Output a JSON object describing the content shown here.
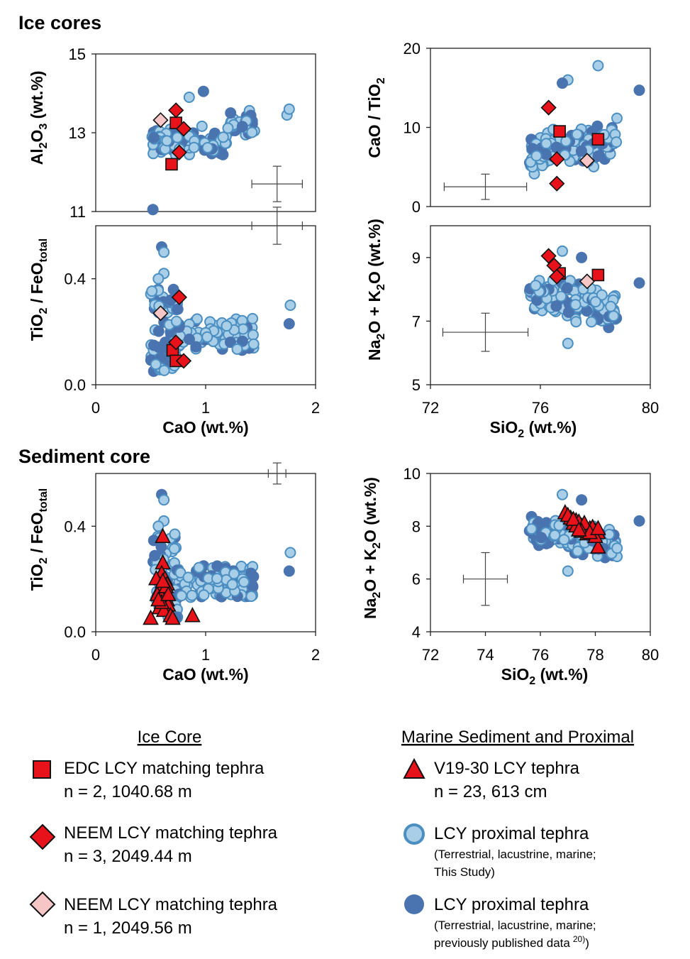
{
  "sections": {
    "ice": "Ice cores",
    "sediment": "Sediment core"
  },
  "axis_labels": {
    "al2o3": [
      "Al",
      "2",
      "O",
      "3",
      " (wt.%)"
    ],
    "cao_tio2": [
      "CaO / TiO",
      "2",
      ""
    ],
    "tio2_feo": [
      "TiO",
      "2",
      " / FeO",
      "total",
      ""
    ],
    "alk": [
      "Na",
      "2",
      "O + K",
      "2",
      "O (wt.%)"
    ],
    "cao": [
      "CaO (wt.%)"
    ],
    "sio2": [
      "SiO",
      "2",
      " (wt.%)"
    ]
  },
  "legend": {
    "ice_heading": "Ice Core",
    "marine_heading": "Marine Sediment and Proximal",
    "edc": {
      "name": "EDC LCY matching tephra",
      "n": "n = 2, 1040.68 m"
    },
    "neem3": {
      "name": "NEEM LCY matching tephra",
      "n": "n = 3, 2049.44 m"
    },
    "neem1": {
      "name": "NEEM LCY matching tephra",
      "n": "n = 1, 2049.56 m"
    },
    "v19": {
      "name": "V19-30 LCY tephra",
      "n": "n = 23, 613 cm"
    },
    "proximal_study": {
      "name": "LCY proximal tephra",
      "note1": "(Terrestrial, lacustrine, marine;",
      "note2": "This Study)"
    },
    "proximal_pub": {
      "name": "LCY proximal tephra",
      "note1": "(Terrestrial, lacustrine, marine;",
      "note2": "previously published data",
      "sup": "20)",
      "tail": ")"
    }
  },
  "colors": {
    "proximal_dark": "#4a74b0",
    "proximal_light": "#a9cfe8",
    "proximal_light_edge": "#4b8fc2",
    "ice_red": "#e8121a",
    "neem_pink": "#f6c6c6"
  },
  "chart_data": [
    {
      "id": "p1",
      "type": "scatter",
      "xlim": [
        0,
        2
      ],
      "ylim": [
        11,
        15
      ],
      "yticks": [
        11,
        13,
        15
      ],
      "xticks": [],
      "error_bar": {
        "x": 1.65,
        "y": 11.7,
        "dx": 0.23,
        "dy": 0.45
      },
      "series": [
        {
          "kind": "edc",
          "points": [
            [
              0.73,
              13.25
            ],
            [
              0.69,
              12.2
            ]
          ]
        },
        {
          "kind": "neem3",
          "points": [
            [
              0.73,
              13.57
            ],
            [
              0.8,
              13.1
            ],
            [
              0.76,
              12.5
            ]
          ]
        },
        {
          "kind": "neem1",
          "points": [
            [
              0.59,
              13.32
            ]
          ]
        }
      ]
    },
    {
      "id": "p2",
      "type": "scatter",
      "xlim": [
        72,
        80
      ],
      "ylim": [
        0,
        20
      ],
      "yticks": [
        0,
        10,
        20
      ],
      "xticks": [],
      "error_bar": {
        "x": 74.0,
        "y": 2.5,
        "dx": 1.5,
        "dy": 1.6
      },
      "series": [
        {
          "kind": "edc",
          "points": [
            [
              76.7,
              9.5
            ],
            [
              78.1,
              8.5
            ]
          ]
        },
        {
          "kind": "neem3",
          "points": [
            [
              76.3,
              12.5
            ],
            [
              76.6,
              6.0
            ],
            [
              76.6,
              2.9
            ]
          ]
        },
        {
          "kind": "neem1",
          "points": [
            [
              77.7,
              5.8
            ]
          ]
        }
      ]
    },
    {
      "id": "p3",
      "type": "scatter",
      "xlim": [
        0,
        2
      ],
      "ylim": [
        0,
        0.6
      ],
      "yticks": [
        0.0,
        0.4
      ],
      "xticks": [
        0,
        1,
        2
      ],
      "error_bar": {
        "x": 1.65,
        "y": 0.6,
        "dx": 0.23,
        "dy": 0.07
      },
      "series": [
        {
          "kind": "edc",
          "points": [
            [
              0.7,
              0.13
            ],
            [
              0.73,
              0.09
            ]
          ]
        },
        {
          "kind": "neem3",
          "points": [
            [
              0.76,
              0.33
            ],
            [
              0.73,
              0.16
            ],
            [
              0.8,
              0.09
            ]
          ]
        },
        {
          "kind": "neem1",
          "points": [
            [
              0.59,
              0.27
            ]
          ]
        }
      ]
    },
    {
      "id": "p4",
      "type": "scatter",
      "xlim": [
        72,
        80
      ],
      "ylim": [
        5,
        10
      ],
      "yticks": [
        5,
        7,
        9
      ],
      "xticks": [
        72,
        76,
        80
      ],
      "error_bar": {
        "x": 74.0,
        "y": 6.65,
        "dx": 1.55,
        "dy": 0.6
      },
      "series": [
        {
          "kind": "edc",
          "points": [
            [
              76.7,
              8.5
            ],
            [
              78.1,
              8.45
            ]
          ]
        },
        {
          "kind": "neem3",
          "points": [
            [
              76.3,
              9.05
            ],
            [
              76.5,
              8.75
            ],
            [
              76.6,
              8.4
            ]
          ]
        },
        {
          "kind": "neem1",
          "points": [
            [
              77.7,
              8.25
            ]
          ]
        }
      ]
    },
    {
      "id": "p5",
      "type": "scatter",
      "xlim": [
        0,
        2
      ],
      "ylim": [
        0,
        0.6
      ],
      "yticks": [
        0.0,
        0.4
      ],
      "xticks": [
        0,
        1,
        2
      ],
      "error_bar": {
        "x": 1.65,
        "y": 0.6,
        "dx": 0.08,
        "dy": 0.04
      },
      "series": [
        {
          "kind": "v19",
          "points": [
            [
              0.61,
              0.36
            ],
            [
              0.61,
              0.26
            ],
            [
              0.6,
              0.22
            ],
            [
              0.63,
              0.2
            ],
            [
              0.55,
              0.2
            ],
            [
              0.65,
              0.18
            ],
            [
              0.58,
              0.16
            ],
            [
              0.62,
              0.15
            ],
            [
              0.56,
              0.14
            ],
            [
              0.6,
              0.13
            ],
            [
              0.65,
              0.12
            ],
            [
              0.66,
              0.1
            ],
            [
              0.58,
              0.09
            ],
            [
              0.62,
              0.08
            ],
            [
              0.68,
              0.06
            ],
            [
              0.5,
              0.05
            ],
            [
              0.7,
              0.05
            ],
            [
              0.88,
              0.06
            ],
            [
              0.6,
              0.11
            ],
            [
              0.64,
              0.17
            ],
            [
              0.57,
              0.12
            ],
            [
              0.66,
              0.14
            ],
            [
              0.61,
              0.19
            ]
          ]
        }
      ]
    },
    {
      "id": "p6",
      "type": "scatter",
      "xlim": [
        72,
        80
      ],
      "ylim": [
        4,
        10
      ],
      "yticks": [
        4,
        6,
        8,
        10
      ],
      "xticks": [
        72,
        74,
        76,
        78,
        80
      ],
      "error_bar": {
        "x": 74.0,
        "y": 6.0,
        "dx": 0.8,
        "dy": 1.0
      },
      "series": [
        {
          "kind": "v19",
          "points": [
            [
              76.9,
              8.5
            ],
            [
              77.1,
              8.3
            ],
            [
              77.3,
              8.2
            ],
            [
              77.2,
              8.1
            ],
            [
              77.5,
              8.0
            ],
            [
              77.6,
              7.95
            ],
            [
              77.4,
              8.15
            ],
            [
              77.8,
              7.9
            ],
            [
              77.9,
              7.85
            ],
            [
              78.0,
              7.8
            ],
            [
              78.1,
              7.75
            ],
            [
              77.7,
              7.7
            ],
            [
              78.1,
              7.2
            ],
            [
              77.3,
              8.0
            ],
            [
              77.0,
              8.4
            ],
            [
              77.6,
              8.1
            ],
            [
              77.9,
              7.95
            ],
            [
              78.0,
              7.6
            ],
            [
              77.5,
              7.8
            ],
            [
              77.2,
              8.25
            ],
            [
              77.8,
              7.75
            ],
            [
              78.1,
              7.9
            ],
            [
              77.4,
              7.85
            ]
          ]
        }
      ]
    }
  ]
}
